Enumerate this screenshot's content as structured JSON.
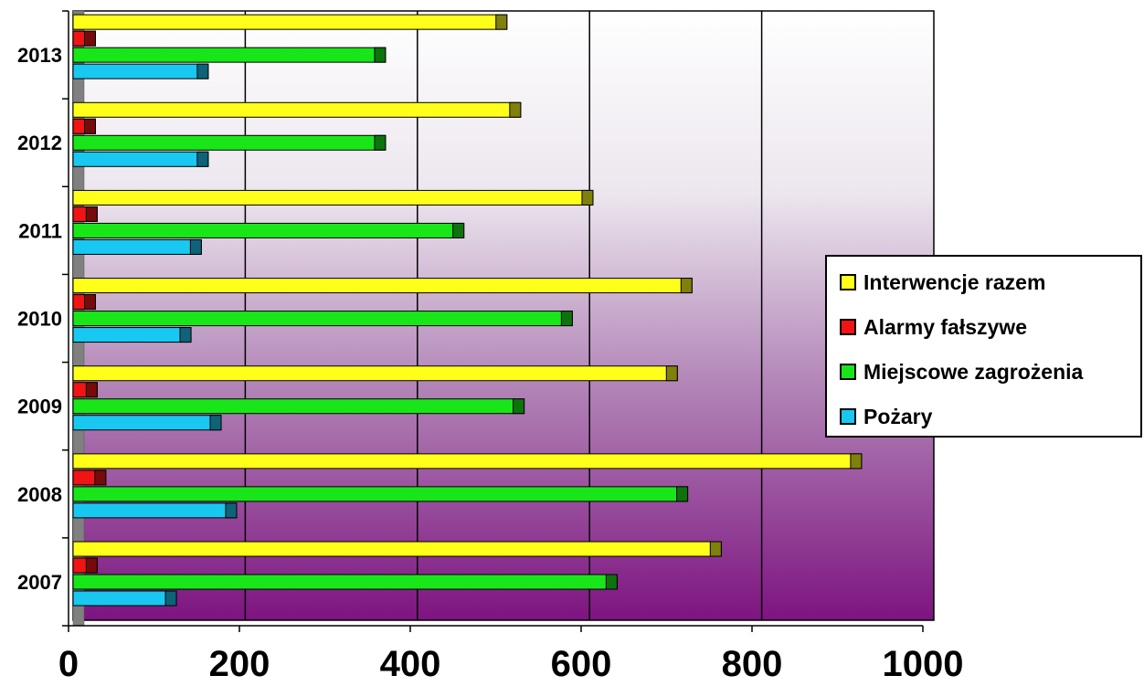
{
  "chart_data": {
    "type": "bar",
    "orientation": "horizontal",
    "categories": [
      "2007",
      "2008",
      "2009",
      "2010",
      "2011",
      "2012",
      "2013"
    ],
    "series": [
      {
        "name": "Pożary",
        "color": "#19c8f0",
        "values": [
          120,
          190,
          172,
          137,
          149,
          157,
          157
        ]
      },
      {
        "name": "Miejscowe zagrożenia",
        "color": "#19e619",
        "values": [
          632,
          714,
          524,
          580,
          454,
          363,
          363
        ]
      },
      {
        "name": "Alarmy fałszywe",
        "color": "#f01414",
        "values": [
          28,
          38,
          28,
          26,
          28,
          26,
          26
        ]
      },
      {
        "name": "Interwencje razem",
        "color": "#ffff19",
        "values": [
          753,
          916,
          702,
          719,
          604,
          520,
          504
        ]
      }
    ],
    "x_ticks": [
      "0",
      "200",
      "400",
      "600",
      "800",
      "1000"
    ],
    "xlim": [
      0,
      1000
    ],
    "grid": true,
    "legend_position": "right",
    "title": "",
    "xlabel": "",
    "ylabel": ""
  }
}
